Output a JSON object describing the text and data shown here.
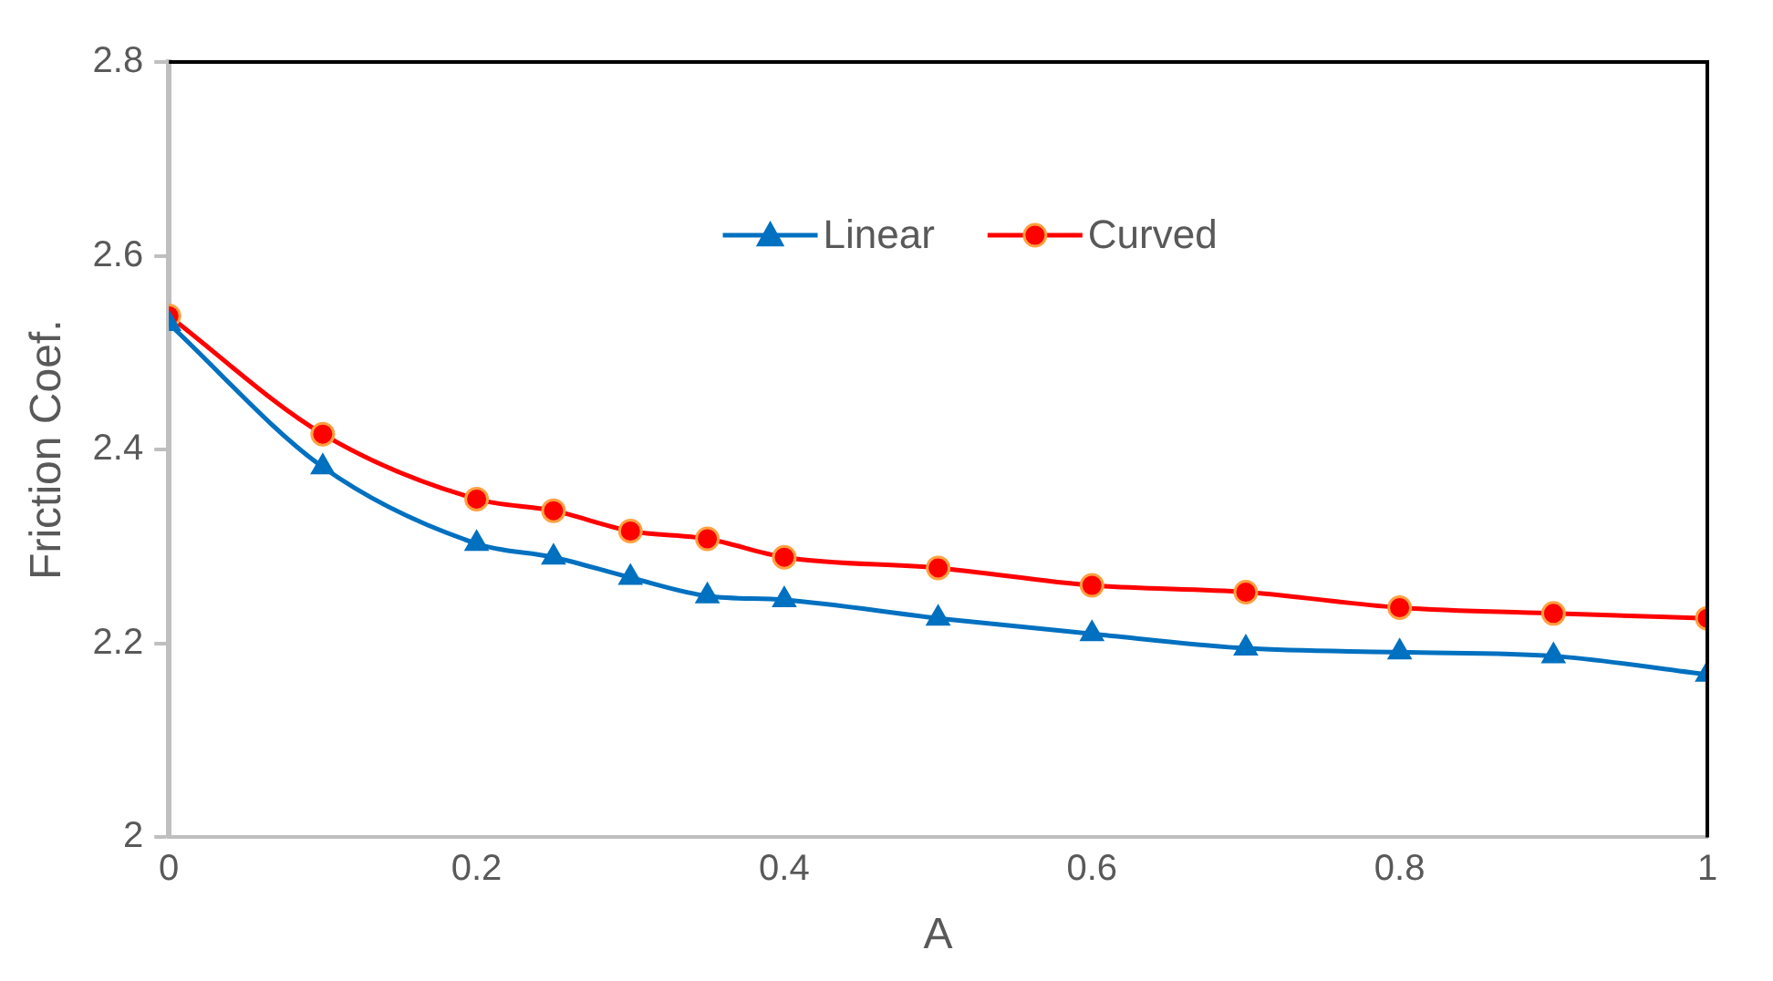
{
  "chart_data": {
    "type": "line",
    "xlabel": "A",
    "ylabel": "Friction Coef.",
    "x": [
      0,
      0.1,
      0.2,
      0.25,
      0.3,
      0.35,
      0.4,
      0.5,
      0.6,
      0.7,
      0.8,
      0.9,
      1
    ],
    "series": [
      {
        "name": "Linear",
        "color": "#0070c0",
        "marker": "triangle",
        "values": [
          2.53,
          2.382,
          2.303,
          2.289,
          2.268,
          2.249,
          2.245,
          2.226,
          2.21,
          2.195,
          2.191,
          2.187,
          2.168
        ]
      },
      {
        "name": "Curved",
        "color": "#ff0000",
        "marker": "circle",
        "values": [
          2.538,
          2.416,
          2.349,
          2.337,
          2.316,
          2.308,
          2.289,
          2.278,
          2.26,
          2.253,
          2.237,
          2.231,
          2.226
        ]
      }
    ],
    "xlim": [
      0,
      1
    ],
    "xticks": [
      0,
      0.2,
      0.4,
      0.6,
      0.8,
      1
    ],
    "ylim": [
      2,
      2.8
    ],
    "yticks": [
      2,
      2.2,
      2.4,
      2.6,
      2.8
    ],
    "grid": false,
    "legend": "top",
    "line_style": "solid"
  }
}
